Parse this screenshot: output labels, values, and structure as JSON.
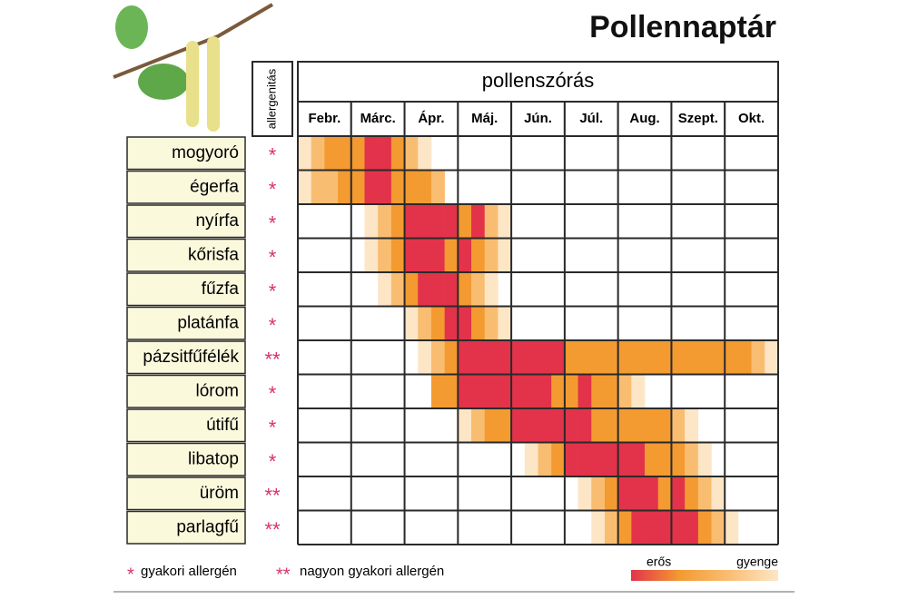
{
  "title": "Pollennaptár",
  "allergen_header": "allergenitás",
  "period_header": "pollenszórás",
  "months": [
    "Febr.",
    "Márc.",
    "Ápr.",
    "Máj.",
    "Jún.",
    "Júl.",
    "Aug.",
    "Szept.",
    "Okt."
  ],
  "level_colors": [
    "#fde6c6",
    "#f9bd72",
    "#f39a31",
    "#e2334a"
  ],
  "rows": [
    {
      "name": "mogyoró",
      "allergen": "*",
      "intensity": [
        1,
        2,
        3,
        3,
        3,
        4,
        4,
        3,
        2,
        1,
        0,
        0,
        0,
        0,
        0,
        0,
        0,
        0,
        0,
        0,
        0,
        0,
        0,
        0,
        0,
        0,
        0,
        0,
        0,
        0,
        0,
        0,
        0,
        0,
        0,
        0
      ]
    },
    {
      "name": "égerfa",
      "allergen": "*",
      "intensity": [
        1,
        2,
        2,
        3,
        3,
        4,
        4,
        3,
        3,
        3,
        2,
        0,
        0,
        0,
        0,
        0,
        0,
        0,
        0,
        0,
        0,
        0,
        0,
        0,
        0,
        0,
        0,
        0,
        0,
        0,
        0,
        0,
        0,
        0,
        0,
        0
      ]
    },
    {
      "name": "nyírfa",
      "allergen": "*",
      "intensity": [
        0,
        0,
        0,
        0,
        0,
        1,
        2,
        3,
        4,
        4,
        4,
        4,
        3,
        4,
        2,
        1,
        0,
        0,
        0,
        0,
        0,
        0,
        0,
        0,
        0,
        0,
        0,
        0,
        0,
        0,
        0,
        0,
        0,
        0,
        0,
        0
      ]
    },
    {
      "name": "kőrisfa",
      "allergen": "*",
      "intensity": [
        0,
        0,
        0,
        0,
        0,
        1,
        2,
        3,
        4,
        4,
        4,
        3,
        4,
        3,
        2,
        1,
        0,
        0,
        0,
        0,
        0,
        0,
        0,
        0,
        0,
        0,
        0,
        0,
        0,
        0,
        0,
        0,
        0,
        0,
        0,
        0
      ]
    },
    {
      "name": "fűzfa",
      "allergen": "*",
      "intensity": [
        0,
        0,
        0,
        0,
        0,
        0,
        1,
        2,
        3,
        4,
        4,
        4,
        3,
        2,
        1,
        0,
        0,
        0,
        0,
        0,
        0,
        0,
        0,
        0,
        0,
        0,
        0,
        0,
        0,
        0,
        0,
        0,
        0,
        0,
        0,
        0
      ]
    },
    {
      "name": "platánfa",
      "allergen": "*",
      "intensity": [
        0,
        0,
        0,
        0,
        0,
        0,
        0,
        0,
        1,
        2,
        3,
        4,
        4,
        3,
        2,
        1,
        0,
        0,
        0,
        0,
        0,
        0,
        0,
        0,
        0,
        0,
        0,
        0,
        0,
        0,
        0,
        0,
        0,
        0,
        0,
        0
      ]
    },
    {
      "name": "pázsitfűfélék",
      "allergen": "**",
      "intensity": [
        0,
        0,
        0,
        0,
        0,
        0,
        0,
        0,
        0,
        1,
        2,
        3,
        4,
        4,
        4,
        4,
        4,
        4,
        4,
        4,
        3,
        3,
        3,
        3,
        3,
        3,
        3,
        3,
        3,
        3,
        3,
        3,
        3,
        3,
        2,
        1
      ]
    },
    {
      "name": "lórom",
      "allergen": "*",
      "intensity": [
        0,
        0,
        0,
        0,
        0,
        0,
        0,
        0,
        0,
        0,
        3,
        3,
        4,
        4,
        4,
        4,
        4,
        4,
        4,
        3,
        3,
        4,
        3,
        3,
        2,
        1,
        0,
        0,
        0,
        0,
        0,
        0,
        0,
        0,
        0,
        0
      ]
    },
    {
      "name": "útifű",
      "allergen": "*",
      "intensity": [
        0,
        0,
        0,
        0,
        0,
        0,
        0,
        0,
        0,
        0,
        0,
        0,
        1,
        2,
        3,
        3,
        4,
        4,
        4,
        4,
        4,
        4,
        3,
        3,
        3,
        3,
        3,
        3,
        2,
        1,
        0,
        0,
        0,
        0,
        0,
        0
      ]
    },
    {
      "name": "libatop",
      "allergen": "*",
      "intensity": [
        0,
        0,
        0,
        0,
        0,
        0,
        0,
        0,
        0,
        0,
        0,
        0,
        0,
        0,
        0,
        0,
        0,
        1,
        2,
        3,
        4,
        4,
        4,
        4,
        4,
        4,
        3,
        3,
        3,
        2,
        1,
        0,
        0,
        0,
        0,
        0
      ]
    },
    {
      "name": "üröm",
      "allergen": "**",
      "intensity": [
        0,
        0,
        0,
        0,
        0,
        0,
        0,
        0,
        0,
        0,
        0,
        0,
        0,
        0,
        0,
        0,
        0,
        0,
        0,
        0,
        0,
        1,
        2,
        3,
        4,
        4,
        4,
        3,
        4,
        3,
        2,
        1,
        0,
        0,
        0,
        0
      ]
    },
    {
      "name": "parlagfű",
      "allergen": "**",
      "intensity": [
        0,
        0,
        0,
        0,
        0,
        0,
        0,
        0,
        0,
        0,
        0,
        0,
        0,
        0,
        0,
        0,
        0,
        0,
        0,
        0,
        0,
        0,
        1,
        2,
        3,
        4,
        4,
        4,
        4,
        4,
        3,
        2,
        1,
        0,
        0,
        0
      ]
    }
  ],
  "legend": {
    "single_mark": "*",
    "single": "gyakori allergén",
    "double_mark": "**",
    "double": "nagyon gyakori allergén",
    "strong": "erős",
    "weak": "gyenge"
  }
}
